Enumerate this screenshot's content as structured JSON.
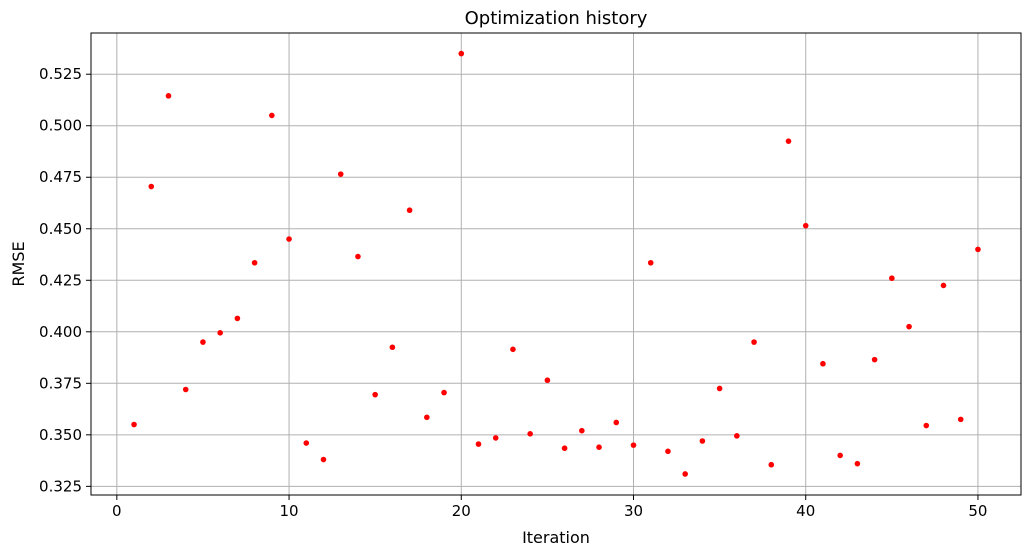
{
  "chart_data": {
    "type": "scatter",
    "title": "Optimization history",
    "xlabel": "Iteration",
    "ylabel": "RMSE",
    "xlim": [
      -1.5,
      52.5
    ],
    "ylim": [
      0.3208,
      0.545
    ],
    "xticks": [
      0,
      10,
      20,
      30,
      40,
      50
    ],
    "yticks": [
      0.325,
      0.35,
      0.375,
      0.4,
      0.425,
      0.45,
      0.475,
      0.5,
      0.525
    ],
    "xtick_labels": [
      "0",
      "10",
      "20",
      "30",
      "40",
      "50"
    ],
    "ytick_labels": [
      "0.325",
      "0.350",
      "0.375",
      "0.400",
      "0.425",
      "0.450",
      "0.475",
      "0.500",
      "0.525"
    ],
    "grid": true,
    "marker_color": "#ff0000",
    "x": [
      1,
      2,
      3,
      4,
      5,
      6,
      7,
      8,
      9,
      10,
      11,
      12,
      13,
      14,
      15,
      16,
      17,
      18,
      19,
      20,
      21,
      22,
      23,
      24,
      25,
      26,
      27,
      28,
      29,
      30,
      31,
      32,
      33,
      34,
      35,
      36,
      37,
      38,
      39,
      40,
      41,
      42,
      43,
      44,
      45,
      46,
      47,
      48,
      49,
      50
    ],
    "y": [
      0.355,
      0.4705,
      0.5145,
      0.372,
      0.395,
      0.3995,
      0.4065,
      0.4335,
      0.505,
      0.445,
      0.346,
      0.338,
      0.4765,
      0.4365,
      0.3695,
      0.3925,
      0.459,
      0.3585,
      0.3705,
      0.535,
      0.3455,
      0.3485,
      0.3915,
      0.3505,
      0.3765,
      0.3435,
      0.352,
      0.344,
      0.356,
      0.345,
      0.4335,
      0.342,
      0.331,
      0.347,
      0.3725,
      0.3495,
      0.395,
      0.3355,
      0.4925,
      0.4515,
      0.3845,
      0.34,
      0.336,
      0.3865,
      0.426,
      0.4025,
      0.3545,
      0.4225,
      0.3575,
      0.44
    ]
  }
}
